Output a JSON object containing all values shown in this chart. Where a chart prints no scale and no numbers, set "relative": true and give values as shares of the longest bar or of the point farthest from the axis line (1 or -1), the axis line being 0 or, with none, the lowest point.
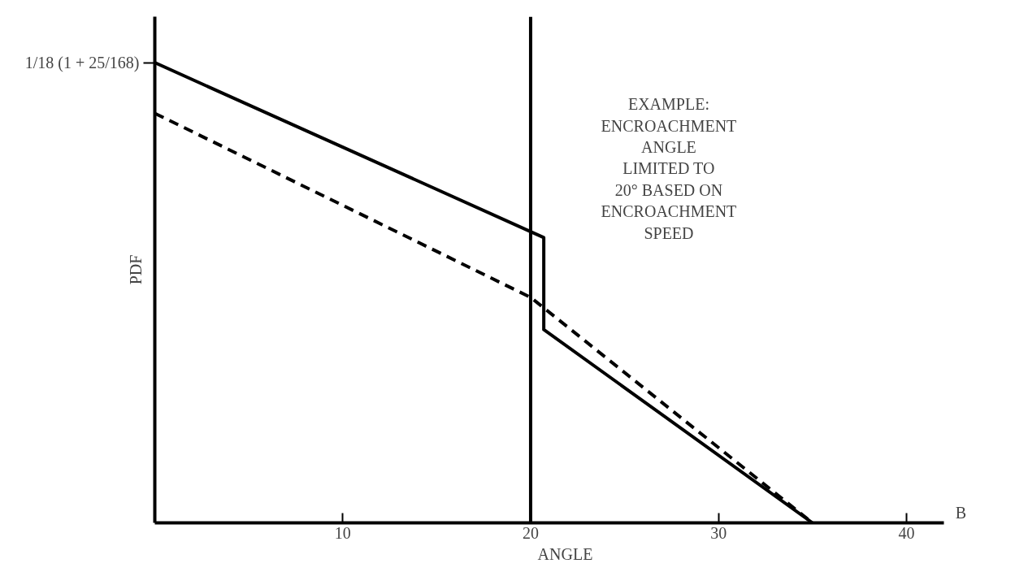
{
  "chart_data": {
    "type": "line",
    "relative": true,
    "xlabel": "ANGLE",
    "ylabel": "PDF",
    "xlim": [
      0,
      42
    ],
    "xticks": [
      10,
      20,
      30,
      40
    ],
    "grid": false,
    "series": [
      {
        "color": "#000000",
        "line_style": "solid",
        "x": [
          0,
          20.7,
          20.7,
          35
        ],
        "values": [
          1,
          0.62,
          0.42,
          0
        ]
      },
      {
        "color": "#000000",
        "line_style": "dashed",
        "x": [
          0,
          20,
          35
        ],
        "values": [
          0.89,
          0.49,
          0
        ]
      }
    ],
    "ref_lines": [
      {
        "axis": "x",
        "value": 20,
        "color": "#000000",
        "line_style": "solid"
      }
    ],
    "annotations": [
      "1/18 (1 + 25/168)",
      "EXAMPLE:\nENCROACHMENT\nANGLE\nLIMITED TO\n20° BASED ON\nENCROACHMENT\nSPEED",
      "B"
    ]
  }
}
